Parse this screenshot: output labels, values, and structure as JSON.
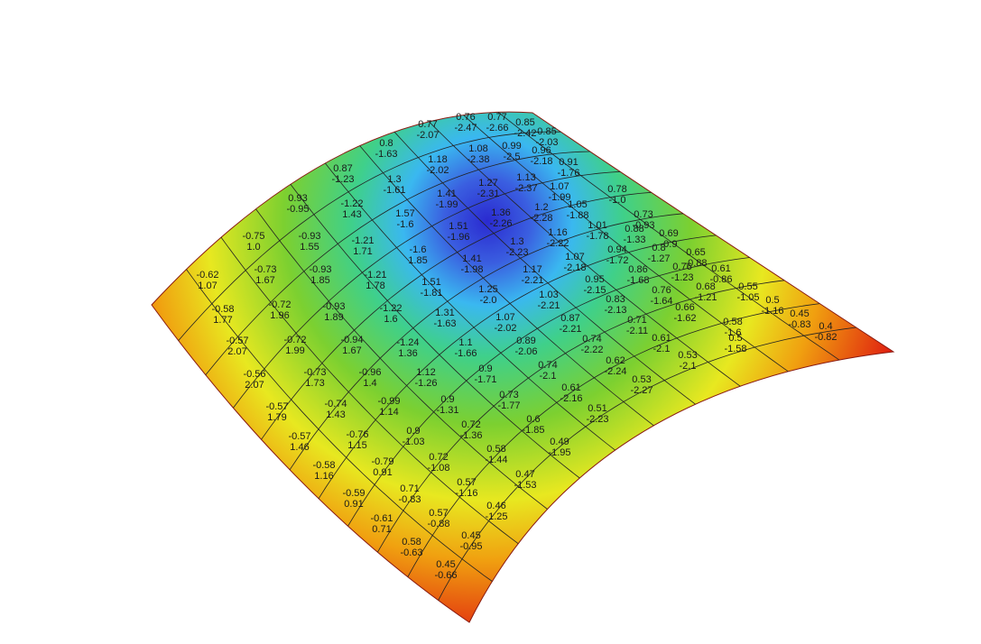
{
  "labels": [
    [
      "-0.62",
      "1.07"
    ],
    [
      "-0.75",
      "1.0"
    ],
    [
      "0.93",
      "-0.95"
    ],
    [
      "0.87",
      "-1.23"
    ],
    [
      "0.8",
      "-1.63"
    ],
    [
      "0.77",
      "-2.07"
    ],
    [
      "0.76",
      "-2.47"
    ],
    [
      "0.77",
      "-2.66"
    ],
    [
      "0.85",
      "-2.42"
    ],
    [
      "0.85",
      "-2.03"
    ],
    [
      "-0.58",
      "1.77"
    ],
    [
      "-0.73",
      "1.67"
    ],
    [
      "-0.93",
      "1.55"
    ],
    [
      "-1.22",
      "1.43"
    ],
    [
      "1.3",
      "-1.61"
    ],
    [
      "1.18",
      "-2.02"
    ],
    [
      "1.08",
      "-2.38"
    ],
    [
      "0.99",
      "-2.5"
    ],
    [
      "0.96",
      "-2.18"
    ],
    [
      "0.91",
      "-1.76"
    ],
    [
      "-0.57",
      "2.07"
    ],
    [
      "-0.72",
      "1.96"
    ],
    [
      "-0.93",
      "1.85"
    ],
    [
      "-1.21",
      "1.71"
    ],
    [
      "1.57",
      "-1.6"
    ],
    [
      "1.41",
      "-1.99"
    ],
    [
      "1.27",
      "-2.31"
    ],
    [
      "1.13",
      "-2.37"
    ],
    [
      "1.07",
      "-1.99"
    ],
    [
      "0.78",
      "-1.0"
    ],
    [
      "-0.56",
      "2.07"
    ],
    [
      "-0.72",
      "1.99"
    ],
    [
      "-0.93",
      "1.89"
    ],
    [
      "-1.21",
      "1.78"
    ],
    [
      "-1.6",
      "1.85"
    ],
    [
      "1.51",
      "-1.96"
    ],
    [
      "1.36",
      "-2.26"
    ],
    [
      "1.2",
      "-2.28"
    ],
    [
      "1.05",
      "-1.88"
    ],
    [
      "0.73",
      "-0.93"
    ],
    [
      "-0.57",
      "1.79"
    ],
    [
      "-0.73",
      "1.73"
    ],
    [
      "-0.94",
      "1.67"
    ],
    [
      "-1.22",
      "1.6"
    ],
    [
      "1.51",
      "-1.81"
    ],
    [
      "1.41",
      "-1.98"
    ],
    [
      "1.3",
      "-2.23"
    ],
    [
      "1.16",
      "-2.22"
    ],
    [
      "1.01",
      "-1.78"
    ],
    [
      "0.88",
      "-1.33"
    ],
    [
      "-0.57",
      "1.46"
    ],
    [
      "-0.74",
      "1.43"
    ],
    [
      "-0.96",
      "1.4"
    ],
    [
      "-1.24",
      "1.36"
    ],
    [
      "1.31",
      "-1.63"
    ],
    [
      "1.25",
      "-2.0"
    ],
    [
      "1.17",
      "-2.21"
    ],
    [
      "1.07",
      "-2.18"
    ],
    [
      "0.94",
      "-1.72"
    ],
    [
      "0.8",
      "-1.27"
    ],
    [
      "-0.58",
      "1.16"
    ],
    [
      "-0.76",
      "1.15"
    ],
    [
      "-0.99",
      "1.14"
    ],
    [
      "1.12",
      "-1.26"
    ],
    [
      "1.1",
      "-1.66"
    ],
    [
      "1.07",
      "-2.02"
    ],
    [
      "1.03",
      "-2.21"
    ],
    [
      "0.95",
      "-2.15"
    ],
    [
      "0.86",
      "-1.68"
    ],
    [
      "0.76",
      "-1.23"
    ],
    [
      "-0.59",
      "0.91"
    ],
    [
      "-0.79",
      "0.91"
    ],
    [
      "0.9",
      "-1.03"
    ],
    [
      "0.9",
      "-1.31"
    ],
    [
      "0.9",
      "-1.71"
    ],
    [
      "0.89",
      "-2.06"
    ],
    [
      "0.87",
      "-2.21"
    ],
    [
      "0.83",
      "-2.13"
    ],
    [
      "0.76",
      "-1.64"
    ],
    [
      "0.68",
      "-1.21"
    ],
    [
      "-0.61",
      "0.71"
    ],
    [
      "0.71",
      "-0.83"
    ],
    [
      "0.72",
      "-1.08"
    ],
    [
      "0.72",
      "-1.36"
    ],
    [
      "0.73",
      "-1.77"
    ],
    [
      "0.74",
      "-2.1"
    ],
    [
      "0.74",
      "-2.22"
    ],
    [
      "0.71",
      "-2.11"
    ],
    [
      "0.66",
      "-1.62"
    ],
    [
      "0.58",
      "-1.6"
    ],
    [
      "0.58",
      "-0.63"
    ],
    [
      "0.57",
      "-0.88"
    ],
    [
      "0.57",
      "-1.16"
    ],
    [
      "0.58",
      "-1.44"
    ],
    [
      "0.6",
      "-1.85"
    ],
    [
      "0.61",
      "-2.16"
    ],
    [
      "0.62",
      "-2.24"
    ],
    [
      "0.61",
      "-2.1"
    ],
    [
      "0.53",
      "-2.1"
    ],
    [
      "0.5",
      "-1.58"
    ],
    [
      "0.45",
      "-0.66"
    ],
    [
      "0.45",
      "-0.95"
    ],
    [
      "0.46",
      "-1.25"
    ],
    [
      "0.47",
      "-1.53"
    ],
    [
      "0.49",
      "-1.95"
    ],
    [
      "0.51",
      "-2.23"
    ],
    [
      "0.53",
      "-2.27"
    ],
    [
      "0.69",
      "-0.9"
    ],
    [
      "0.65",
      "-0.88"
    ],
    [
      "0.61",
      "-0.86"
    ],
    [
      "0.55",
      "-1.05"
    ],
    [
      "0.5",
      "-1.16"
    ],
    [
      "0.45",
      "-0.83"
    ],
    [
      "0.4",
      "-0.82"
    ]
  ]
}
